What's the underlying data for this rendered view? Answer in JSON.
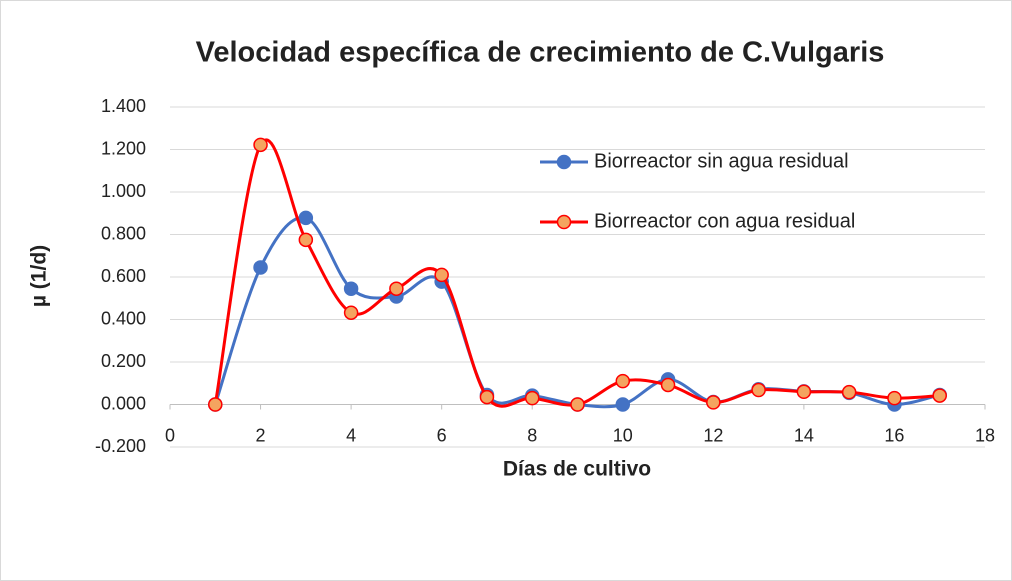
{
  "chart_data": {
    "type": "scatter",
    "title": "Velocidad específica de crecimiento de C.Vulgaris",
    "x_label": "Días de cultivo",
    "y_label": "µ (1/d)",
    "x": [
      1,
      2,
      3,
      4,
      5,
      6,
      7,
      8,
      9,
      10,
      11,
      12,
      13,
      14,
      15,
      16,
      17
    ],
    "series": [
      {
        "name": "Biorreactor sin agua residual",
        "color": "#4472c4",
        "marker_color": "#4472c4",
        "values": [
          0,
          0.645,
          0.878,
          0.545,
          0.508,
          0.578,
          0.045,
          0.042,
          0.0,
          0.0,
          0.118,
          0.012,
          0.072,
          0.062,
          0.055,
          0.0,
          0.045
        ]
      },
      {
        "name": "Biorreactor con agua residual",
        "color": "#ff0000",
        "marker_color": "#f4a460",
        "values": [
          0,
          1.222,
          0.775,
          0.432,
          0.545,
          0.61,
          0.035,
          0.03,
          0.0,
          0.11,
          0.092,
          0.01,
          0.068,
          0.06,
          0.058,
          0.03,
          0.042
        ]
      }
    ],
    "xlim": [
      0,
      18
    ],
    "xticks": [
      0,
      2,
      4,
      6,
      8,
      10,
      12,
      14,
      16,
      18
    ],
    "ylim": [
      -0.2,
      1.4
    ],
    "yticks": [
      {
        "value": -0.2,
        "label": "-0.200"
      },
      {
        "value": 0,
        "label": "0.000"
      },
      {
        "value": 0.2,
        "label": "0.200"
      },
      {
        "value": 0.4,
        "label": "0.400"
      },
      {
        "value": 0.6,
        "label": "0.600"
      },
      {
        "value": 0.8,
        "label": "0.800"
      },
      {
        "value": 1.0,
        "label": "1.000"
      },
      {
        "value": 1.2,
        "label": "1.200"
      },
      {
        "value": 1.4,
        "label": "1.400"
      }
    ],
    "grid": true,
    "smooth": true,
    "legend": "upper right"
  }
}
